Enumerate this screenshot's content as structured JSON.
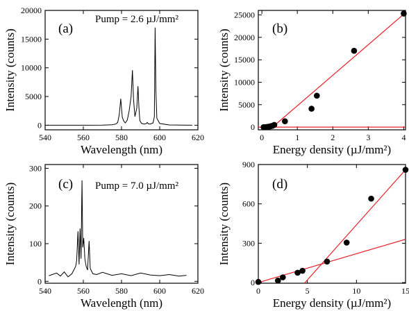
{
  "chart_data": [
    {
      "id": "a",
      "type": "line",
      "panel_label": "(a)",
      "annotation": "Pump = 2.6 µJ/mm²",
      "xlabel": "Wavelength (nm)",
      "ylabel": "Intensity (counts)",
      "xlim": [
        540,
        620
      ],
      "ylim": [
        -800,
        20000
      ],
      "xticks": [
        540,
        560,
        580,
        600,
        620
      ],
      "yticks": [
        0,
        5000,
        10000,
        15000,
        20000
      ],
      "series": [
        {
          "x": [
            541,
            560,
            570,
            575,
            577,
            578,
            578.8,
            579.6,
            580.4,
            581.2,
            582,
            583,
            584,
            585,
            585.7,
            586.3,
            587,
            588,
            588.6,
            589.1,
            589.6,
            590.5,
            592,
            593,
            593.5,
            594,
            595,
            596.5,
            597.2,
            597.6,
            598,
            598.5,
            600,
            605,
            617
          ],
          "y": [
            0,
            0,
            20,
            80,
            200,
            500,
            1800,
            4600,
            1400,
            700,
            400,
            900,
            2500,
            5000,
            9600,
            4500,
            1500,
            3000,
            6800,
            3200,
            800,
            300,
            200,
            300,
            500,
            250,
            200,
            400,
            1500,
            17000,
            6000,
            1200,
            300,
            50,
            0
          ]
        }
      ]
    },
    {
      "id": "b",
      "type": "scatter",
      "panel_label": "(b)",
      "xlabel": "Energy density (µJ/mm²)",
      "ylabel": "Intensity (counts)",
      "xlim": [
        -0.1,
        4.05
      ],
      "ylim": [
        -600,
        26000
      ],
      "xticks": [
        0,
        1,
        2,
        3,
        4
      ],
      "yticks": [
        0,
        5000,
        10000,
        15000,
        20000,
        25000
      ],
      "points": {
        "x": [
          0.05,
          0.1,
          0.15,
          0.2,
          0.25,
          0.3,
          0.35,
          0.65,
          1.4,
          1.55,
          2.6,
          4.0
        ],
        "y": [
          0,
          0,
          50,
          100,
          200,
          300,
          500,
          1300,
          4100,
          7000,
          17000,
          25300
        ]
      },
      "fit_lines": [
        {
          "x": [
            -0.1,
            4.05
          ],
          "y": [
            0,
            0
          ]
        },
        {
          "x": [
            0.3,
            4.05
          ],
          "y": [
            0,
            25500
          ]
        }
      ]
    },
    {
      "id": "c",
      "type": "line",
      "panel_label": "(c)",
      "annotation": "Pump = 7.0 µJ/mm²",
      "xlabel": "Wavelength (nm)",
      "ylabel": "Intensity (counts)",
      "xlim": [
        540,
        620
      ],
      "ylim": [
        -5,
        310
      ],
      "xticks": [
        540,
        560,
        580,
        600,
        620
      ],
      "yticks": [
        0,
        100,
        200,
        300
      ],
      "series": [
        {
          "x": [
            542,
            546,
            548,
            550,
            552,
            554,
            555,
            556,
            556.5,
            557.2,
            557.8,
            558.3,
            558.8,
            559.3,
            559.7,
            560.2,
            560.8,
            561.5,
            562.2,
            563,
            563.6,
            564.2,
            565,
            567,
            570,
            575,
            580,
            585,
            590,
            595,
            600,
            605,
            610,
            614
          ],
          "y": [
            15,
            22,
            14,
            25,
            12,
            20,
            30,
            40,
            55,
            133,
            45,
            140,
            60,
            268,
            90,
            115,
            60,
            40,
            30,
            107,
            35,
            28,
            20,
            18,
            24,
            16,
            20,
            15,
            22,
            17,
            15,
            18,
            14,
            16
          ]
        }
      ]
    },
    {
      "id": "d",
      "type": "scatter",
      "panel_label": "(d)",
      "xlabel": "Energy density (µJ/mm²)",
      "ylabel": "Intensity (counts)",
      "xlim": [
        0,
        15
      ],
      "ylim": [
        -5,
        900
      ],
      "xticks": [
        0,
        5,
        10,
        15
      ],
      "yticks": [
        0,
        300,
        600,
        900
      ],
      "points": {
        "x": [
          0,
          2,
          2.5,
          4,
          4.5,
          7,
          9,
          11.5,
          15
        ],
        "y": [
          5,
          15,
          40,
          75,
          90,
          160,
          305,
          640,
          860
        ]
      },
      "fit_lines": [
        {
          "x": [
            0,
            15
          ],
          "y": [
            0,
            330
          ]
        },
        {
          "x": [
            4.7,
            15
          ],
          "y": [
            -5,
            860
          ]
        }
      ]
    }
  ]
}
